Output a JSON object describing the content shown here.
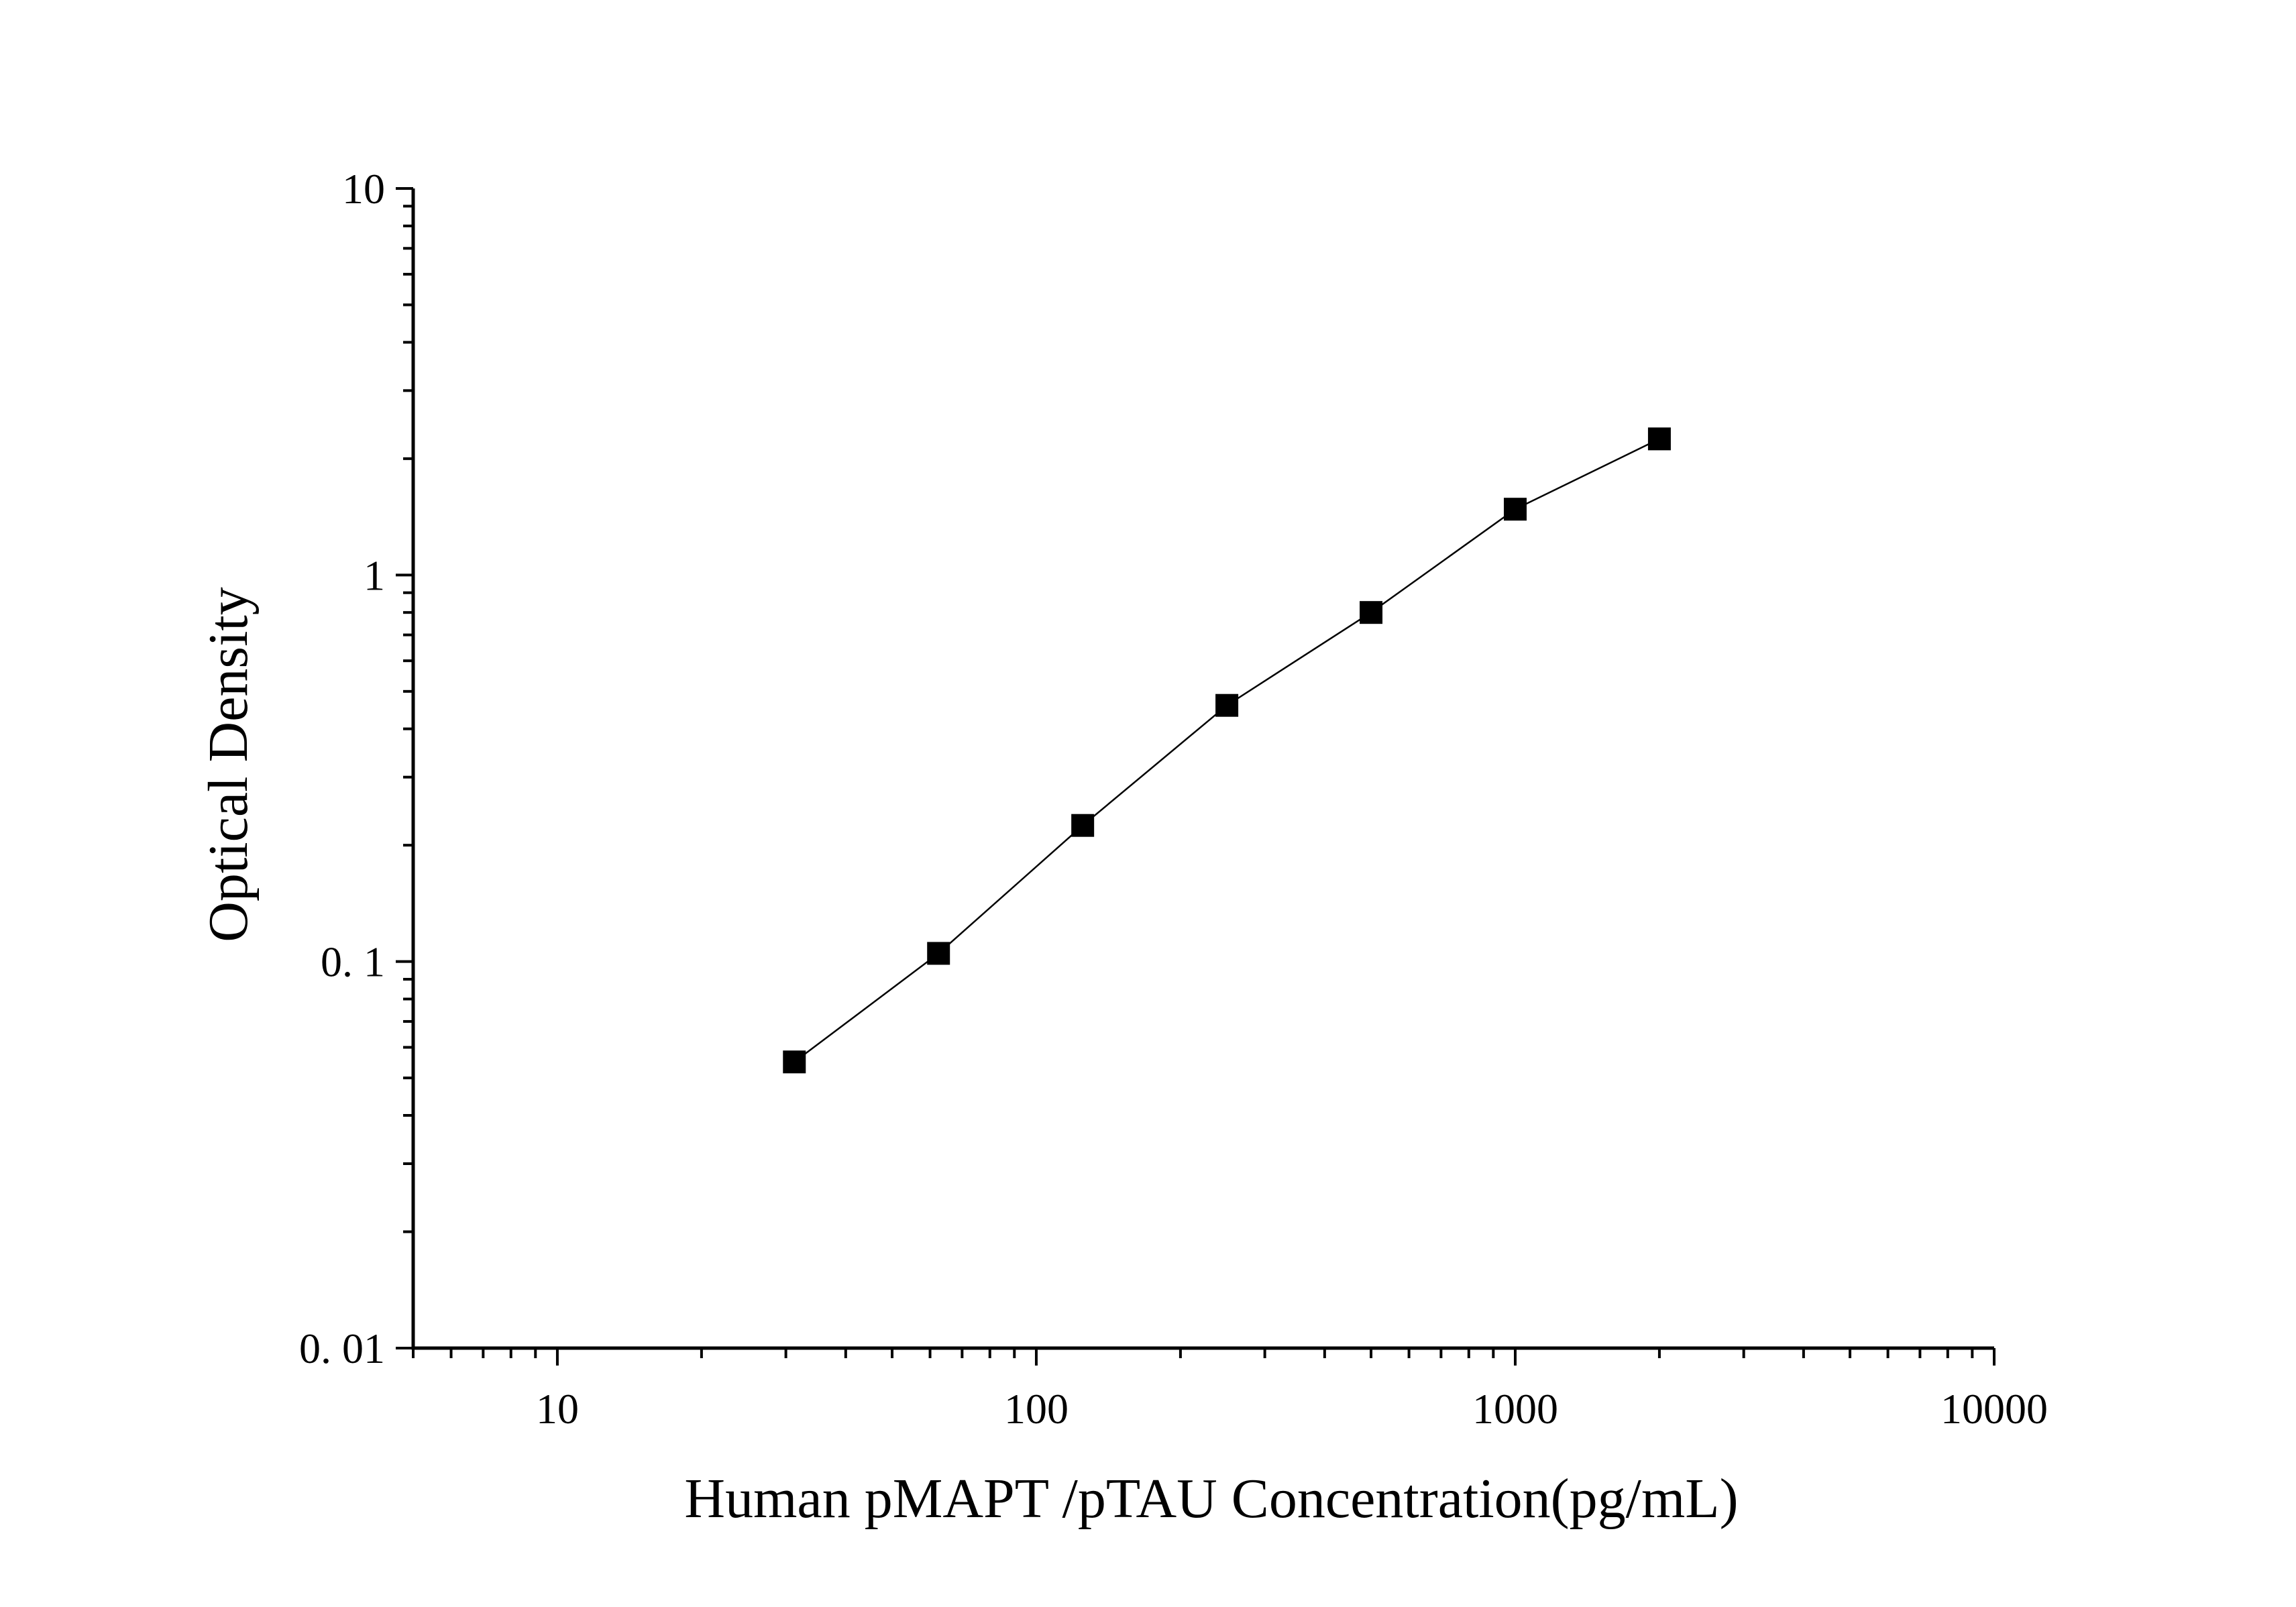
{
  "chart_data": {
    "type": "line",
    "title": "",
    "xlabel": "Human pMAPT /pTAU Concentration(pg/mL)",
    "ylabel": "Optical Density",
    "xscale": "log",
    "yscale": "log",
    "xlim": [
      5,
      10000
    ],
    "ylim": [
      0.01,
      10
    ],
    "x_ticks": [
      {
        "value": 10,
        "label": "10"
      },
      {
        "value": 100,
        "label": "100"
      },
      {
        "value": 1000,
        "label": "1000"
      },
      {
        "value": 10000,
        "label": "10000"
      }
    ],
    "y_ticks": [
      {
        "value": 0.01,
        "label": "0. 01"
      },
      {
        "value": 0.1,
        "label": "0. 1"
      },
      {
        "value": 1,
        "label": "1"
      },
      {
        "value": 10,
        "label": "10"
      }
    ],
    "grid": false,
    "legend": "none",
    "marker": "square",
    "color": "#000000",
    "series": [
      {
        "x": [
          31.25,
          62.5,
          125,
          250,
          500,
          1000,
          2000
        ],
        "y": [
          0.055,
          0.105,
          0.225,
          0.46,
          0.8,
          1.48,
          2.25
        ]
      }
    ]
  }
}
